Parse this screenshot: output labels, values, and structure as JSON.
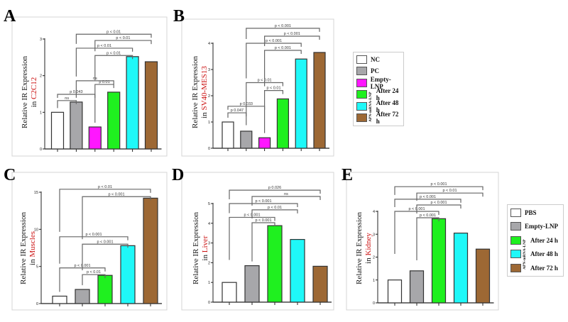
{
  "colors": {
    "NC": "#ffffff",
    "PC": "#a7a7aa",
    "Empty": "#ff17ff",
    "h24": "#1ff01f",
    "h48": "#1ff8f8",
    "h72": "#9d6834",
    "cell_text": "#cc1111"
  },
  "chart_data": [
    {
      "panel": "A",
      "type": "bar",
      "ylabel": "Relative IR Expression",
      "ylabel_prefix": "in ",
      "ylabel_highlight": "C2C12",
      "ylim": [
        0,
        3
      ],
      "yticks": [
        "0",
        "1",
        "2",
        "3"
      ],
      "categories": [
        "NC",
        "PC",
        "Empty-LNP",
        "After 24 h",
        "After 48 h",
        "After 72 h"
      ],
      "values": [
        1.0,
        1.28,
        0.6,
        1.55,
        2.52,
        2.38
      ],
      "bar_colors": [
        "NC",
        "PC",
        "Empty",
        "h24",
        "h48",
        "h72"
      ],
      "comparisons": [
        {
          "from": 0,
          "to": 1,
          "label": "ns",
          "y": 1.32
        },
        {
          "from": 0,
          "to": 2,
          "label": "p 0.043",
          "y": 1.49
        },
        {
          "from": 2,
          "to": 3,
          "label": "p  0.01",
          "y": 1.76
        },
        {
          "from": 1,
          "to": 3,
          "label": "ns",
          "y": 1.86
        },
        {
          "from": 2,
          "to": 4,
          "label": "p < 0.01",
          "y": 2.55
        },
        {
          "from": 1,
          "to": 4,
          "label": "p < 0.01",
          "y": 2.75
        },
        {
          "from": 2,
          "to": 5,
          "label": "p < 0.01",
          "y": 2.96
        },
        {
          "from": 1,
          "to": 5,
          "label": "p < 0.01",
          "y": 3.13
        }
      ]
    },
    {
      "panel": "B",
      "type": "bar",
      "ylabel": "Relative IR Expression",
      "ylabel_prefix": "in ",
      "ylabel_highlight": "SV40-MES13",
      "ylim": [
        0,
        4
      ],
      "yticks": [
        "0",
        "1",
        "2",
        "3",
        "4"
      ],
      "categories": [
        "NC",
        "PC",
        "Empty-LNP",
        "After 24 h",
        "After 48 h",
        "After 72 h"
      ],
      "values": [
        1.0,
        0.65,
        0.4,
        1.88,
        3.4,
        3.65
      ],
      "bar_colors": [
        "NC",
        "PC",
        "Empty",
        "h24",
        "h48",
        "h72"
      ],
      "comparisons": [
        {
          "from": 0,
          "to": 1,
          "label": "p 0.047",
          "y": 1.35
        },
        {
          "from": 0,
          "to": 2,
          "label": "p 0.033",
          "y": 1.6
        },
        {
          "from": 2,
          "to": 3,
          "label": "p < 0.01",
          "y": 2.2
        },
        {
          "from": 1,
          "to": 3,
          "label": "p < 0.01",
          "y": 2.5
        },
        {
          "from": 2,
          "to": 4,
          "label": "p < 0.001",
          "y": 3.73
        },
        {
          "from": 1,
          "to": 4,
          "label": "p < 0.001",
          "y": 4.0
        },
        {
          "from": 2,
          "to": 5,
          "label": "p < 0.001",
          "y": 4.27
        },
        {
          "from": 1,
          "to": 5,
          "label": "p < 0.001",
          "y": 4.57
        }
      ]
    },
    {
      "panel": "C",
      "type": "bar",
      "ylabel": "Relative IR Expression",
      "ylabel_prefix": "in ",
      "ylabel_highlight": "Muscles",
      "ylim": [
        0,
        15
      ],
      "yticks": [
        "0",
        "5",
        "10",
        "15"
      ],
      "categories": [
        "PBS",
        "Empty-LNP",
        "After 24 h",
        "After 48 h",
        "After 72 h"
      ],
      "values": [
        1.0,
        1.9,
        3.8,
        7.8,
        14.2
      ],
      "bar_colors": [
        "NC",
        "PC",
        "h24",
        "h48",
        "h72"
      ],
      "comparisons": [
        {
          "from": 1,
          "to": 2,
          "label": "p < 0.01",
          "y": 3.9
        },
        {
          "from": 0,
          "to": 2,
          "label": "p < 0.001",
          "y": 4.8
        },
        {
          "from": 1,
          "to": 3,
          "label": "p < 0.001",
          "y": 8.0
        },
        {
          "from": 0,
          "to": 3,
          "label": "p < 0.001",
          "y": 9.0
        },
        {
          "from": 1,
          "to": 4,
          "label": "p < 0.001",
          "y": 14.4
        },
        {
          "from": 0,
          "to": 4,
          "label": "p < 0.01",
          "y": 15.4
        }
      ]
    },
    {
      "panel": "D",
      "type": "bar",
      "ylabel": "Relative IR Expression",
      "ylabel_prefix": "in ",
      "ylabel_highlight": "Liver",
      "ylim": [
        0,
        5
      ],
      "yticks": [
        "0",
        "1",
        "2",
        "3",
        "4",
        "5"
      ],
      "categories": [
        "PBS",
        "Empty-LNP",
        "After 24 h",
        "After 48 h",
        "After 72 h"
      ],
      "values": [
        1.0,
        1.85,
        3.88,
        3.18,
        1.82
      ],
      "bar_colors": [
        "NC",
        "PC",
        "h24",
        "h48",
        "h72"
      ],
      "comparisons": [
        {
          "from": 1,
          "to": 2,
          "label": "p < 0.001",
          "y": 4.03
        },
        {
          "from": 0,
          "to": 2,
          "label": "p < 0.001",
          "y": 4.3
        },
        {
          "from": 1,
          "to": 3,
          "label": "p < 0.01",
          "y": 4.68
        },
        {
          "from": 0,
          "to": 3,
          "label": "p < 0.001",
          "y": 5.0
        },
        {
          "from": 1,
          "to": 4,
          "label": "ns",
          "y": 5.36
        },
        {
          "from": 0,
          "to": 4,
          "label": "p 0.026",
          "y": 5.68
        }
      ]
    },
    {
      "panel": "E",
      "type": "bar",
      "ylabel": "Relative IR Expression",
      "ylabel_prefix": "in ",
      "ylabel_highlight": "Kidney",
      "ylim": [
        0,
        4
      ],
      "yticks": [
        "0",
        "1",
        "2",
        "3",
        "4"
      ],
      "categories": [
        "PBS",
        "Empty-LNP",
        "After 24 h",
        "After 48 h",
        "After 72 h"
      ],
      "values": [
        1.0,
        1.4,
        3.68,
        3.05,
        2.35
      ],
      "bar_colors": [
        "NC",
        "PC",
        "h24",
        "h48",
        "h72"
      ],
      "comparisons": [
        {
          "from": 1,
          "to": 2,
          "label": "p < 0.001",
          "y": 3.72
        },
        {
          "from": 0,
          "to": 2,
          "label": "p < 0.001",
          "y": 4.0
        },
        {
          "from": 1,
          "to": 3,
          "label": "p < 0.001",
          "y": 4.28
        },
        {
          "from": 0,
          "to": 3,
          "label": "p < 0.001",
          "y": 4.53
        },
        {
          "from": 1,
          "to": 4,
          "label": "p < 0.01",
          "y": 4.8
        },
        {
          "from": 0,
          "to": 4,
          "label": "p < 0.001",
          "y": 5.08
        }
      ]
    }
  ],
  "legend_top": {
    "items": [
      "NC",
      "PC",
      "Empty-LNP",
      "After 24 h",
      "After 48 h",
      "After 72 h"
    ],
    "swatches": [
      "NC",
      "PC",
      "Empty",
      "h24",
      "h48",
      "h72"
    ],
    "group_label": "APN-mRNA-LNP"
  },
  "legend_bottom": {
    "items": [
      "PBS",
      "Empty-LNP",
      "After 24 h",
      "After 48 h",
      "After 72 h"
    ],
    "swatches": [
      "NC",
      "PC",
      "h24",
      "h48",
      "h72"
    ],
    "group_label": "APN-mRNA-LNP"
  }
}
